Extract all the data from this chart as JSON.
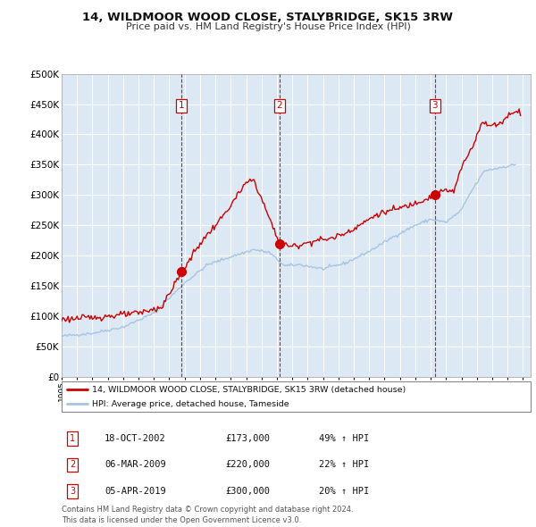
{
  "title": "14, WILDMOOR WOOD CLOSE, STALYBRIDGE, SK15 3RW",
  "subtitle": "Price paid vs. HM Land Registry's House Price Index (HPI)",
  "background_color": "#dce9f5",
  "plot_bg_color": "#dce9f5",
  "grid_color": "#ffffff",
  "hpi_color": "#a8c4e0",
  "price_color": "#cc0000",
  "sale_marker_color": "#cc0000",
  "vline_color": "#cc0000",
  "ylim": [
    0,
    500000
  ],
  "yticks": [
    0,
    50000,
    100000,
    150000,
    200000,
    250000,
    300000,
    350000,
    400000,
    450000,
    500000
  ],
  "ytick_labels": [
    "£0",
    "£50K",
    "£100K",
    "£150K",
    "£200K",
    "£250K",
    "£300K",
    "£350K",
    "£400K",
    "£450K",
    "£500K"
  ],
  "xlim_start": 1995.0,
  "xlim_end": 2025.5,
  "xtick_years": [
    1995,
    1996,
    1997,
    1998,
    1999,
    2000,
    2001,
    2002,
    2003,
    2004,
    2005,
    2006,
    2007,
    2008,
    2009,
    2010,
    2011,
    2012,
    2013,
    2014,
    2015,
    2016,
    2017,
    2018,
    2019,
    2020,
    2021,
    2022,
    2023,
    2024,
    2025
  ],
  "sales": [
    {
      "date_num": 2002.8,
      "price": 173000,
      "label": "1",
      "date_str": "18-OCT-2002",
      "pct": "49%"
    },
    {
      "date_num": 2009.17,
      "price": 220000,
      "label": "2",
      "date_str": "06-MAR-2009",
      "pct": "22%"
    },
    {
      "date_num": 2019.27,
      "price": 300000,
      "label": "3",
      "date_str": "05-APR-2019",
      "pct": "20%"
    }
  ],
  "legend_line1": "14, WILDMOOR WOOD CLOSE, STALYBRIDGE, SK15 3RW (detached house)",
  "legend_line2": "HPI: Average price, detached house, Tameside",
  "footnote": "Contains HM Land Registry data © Crown copyright and database right 2024.\nThis data is licensed under the Open Government Licence v3.0.",
  "table_rows": [
    {
      "num": "1",
      "date": "18-OCT-2002",
      "price": "£173,000",
      "pct": "49% ↑ HPI"
    },
    {
      "num": "2",
      "date": "06-MAR-2009",
      "price": "£220,000",
      "pct": "22% ↑ HPI"
    },
    {
      "num": "3",
      "date": "05-APR-2019",
      "price": "£300,000",
      "pct": "20% ↑ HPI"
    }
  ]
}
